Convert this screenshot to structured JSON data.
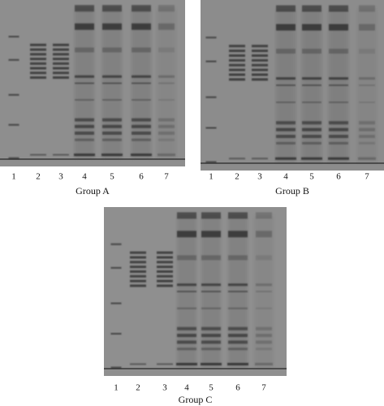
{
  "panels": [
    {
      "label": "Group A",
      "lanes": [
        "1",
        "2",
        "3",
        "4",
        "5",
        "6",
        "7"
      ]
    },
    {
      "label": "Group B",
      "lanes": [
        "1",
        "2",
        "3",
        "4",
        "5",
        "6",
        "7"
      ]
    },
    {
      "label": "Group C",
      "lanes": [
        "1",
        "2",
        "3",
        "4",
        "5",
        "6",
        "7"
      ]
    }
  ]
}
